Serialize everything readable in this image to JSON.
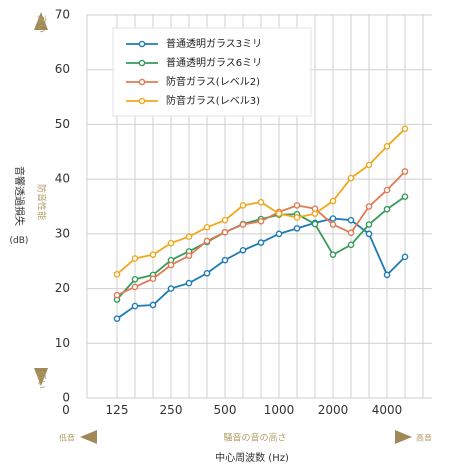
{
  "chart_data": {
    "type": "line",
    "x_categories": [
      "125",
      "250",
      "500",
      "1000",
      "2000",
      "4000"
    ],
    "ylim": [
      0,
      70
    ],
    "y_ticks": [
      0,
      10,
      20,
      30,
      40,
      50,
      60,
      70
    ],
    "ylabel": "音響透過損失",
    "ylabel_unit": "(dB)",
    "xlabel": "中心周波数 (Hz)",
    "y_arrow_top": "高い",
    "y_arrow_middle": "防音性能",
    "y_arrow_bottom": "低い",
    "x_arrow_left": "低音",
    "x_arrow_middle": "騒音の音の高さ",
    "x_arrow_right": "高音",
    "grid": true,
    "legend_position": "top-left",
    "x_points": [
      "125",
      "160",
      "200",
      "250",
      "315",
      "400",
      "500",
      "630",
      "800",
      "1000",
      "1250",
      "1600",
      "2000",
      "2500",
      "3150",
      "4000",
      "5000"
    ],
    "series": [
      {
        "name": "普通透明ガラス3ミリ",
        "color": "#1f7bb6",
        "values": [
          14.5,
          16.8,
          17,
          20,
          21,
          22.8,
          25.2,
          27,
          28.4,
          30,
          31,
          32,
          32.8,
          32.5,
          30,
          22.5,
          25.8
        ]
      },
      {
        "name": "普通透明ガラス6ミリ",
        "color": "#3a9a5c",
        "values": [
          18,
          21.7,
          22.5,
          25.2,
          26.8,
          28.5,
          30.3,
          31.8,
          32.7,
          33.5,
          33.6,
          31.8,
          26.2,
          28,
          31.7,
          34.5,
          36.8
        ]
      },
      {
        "name": "防音ガラス(レベル2)",
        "color": "#e07b54",
        "values": [
          18.8,
          20.3,
          21.8,
          24.3,
          26,
          28.7,
          30.3,
          31.7,
          32.3,
          34,
          35.2,
          34.6,
          31.7,
          30.2,
          35,
          38,
          41.4
        ]
      },
      {
        "name": "防音ガラス(レベル3)",
        "color": "#f0a81e",
        "values": [
          22.6,
          25.5,
          26.2,
          28.3,
          29.5,
          31.2,
          32.5,
          35.2,
          35.8,
          33.7,
          33,
          33.7,
          36,
          40.2,
          42.6,
          46,
          49.2
        ]
      }
    ]
  }
}
